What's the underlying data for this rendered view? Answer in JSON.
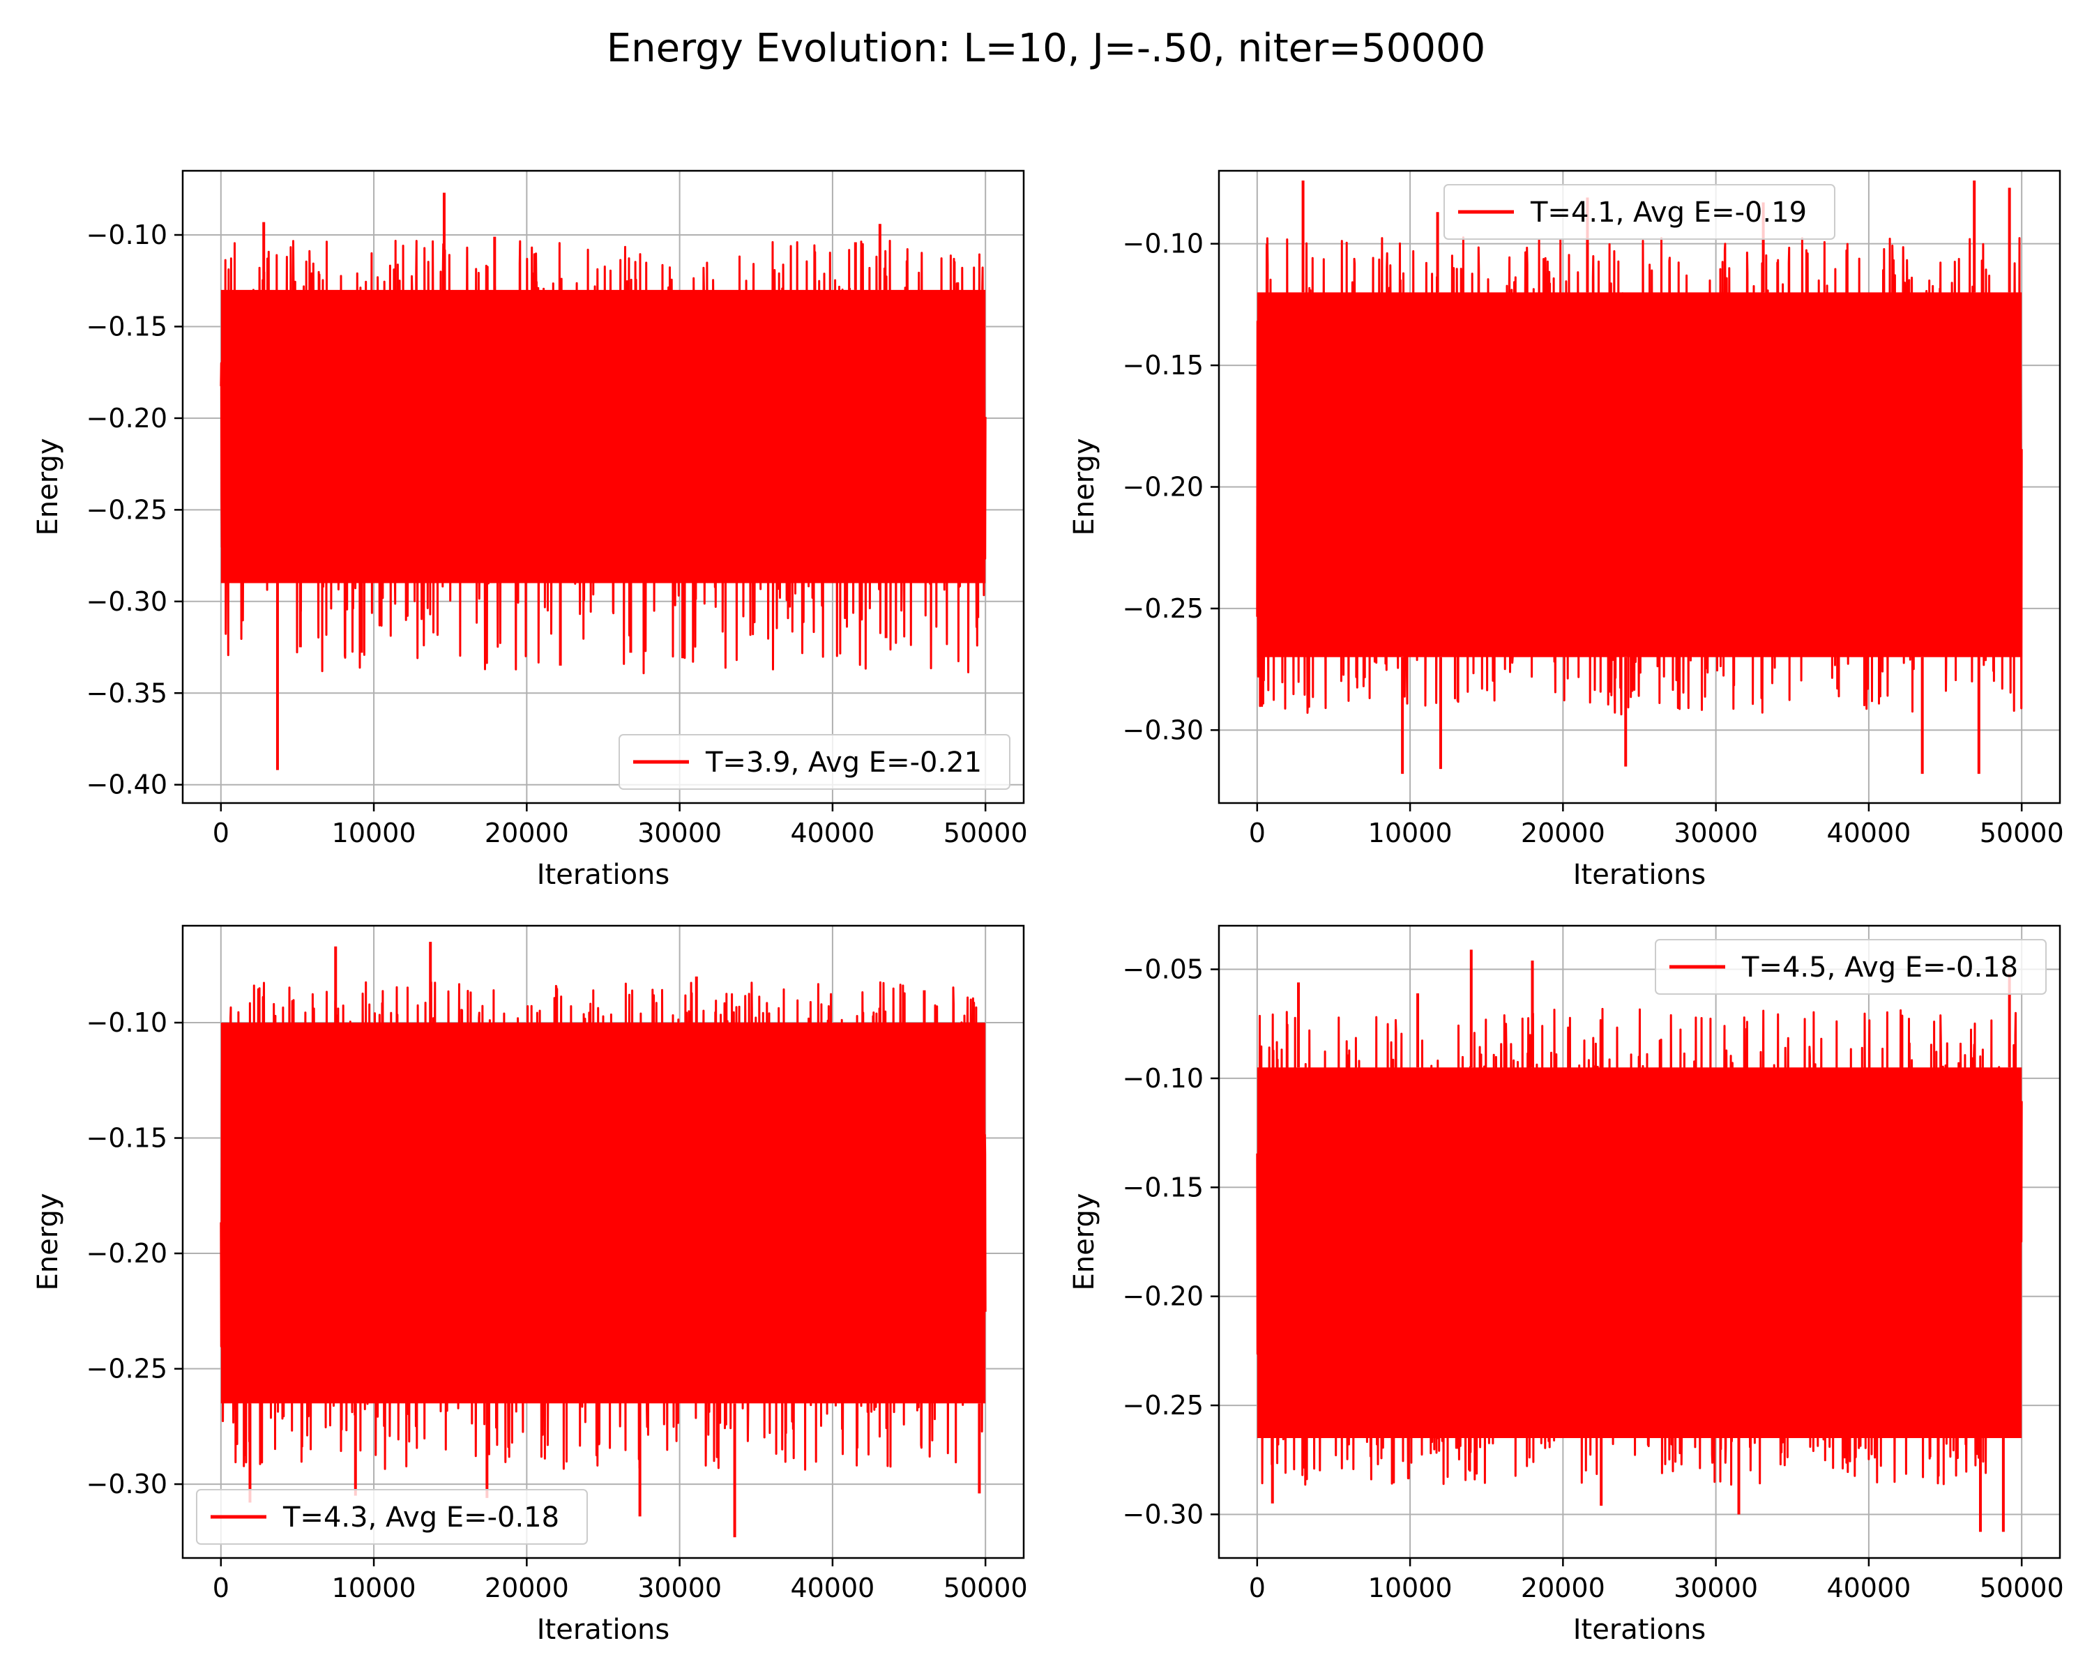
{
  "figure": {
    "suptitle": "Energy Evolution: L=10, J=-.50, niter=50000",
    "line_color": "#ff0000"
  },
  "chart_data": [
    {
      "type": "line",
      "xlabel": "Iterations",
      "ylabel": "Energy",
      "xlim": [
        -2500,
        52500
      ],
      "ylim": [
        -0.41,
        -0.065
      ],
      "xticks": [
        0,
        10000,
        20000,
        30000,
        40000,
        50000
      ],
      "yticks": [
        -0.4,
        -0.35,
        -0.3,
        -0.25,
        -0.2,
        -0.15,
        -0.1
      ],
      "ytick_labels": [
        "−0.40",
        "−0.35",
        "−0.30",
        "−0.25",
        "−0.20",
        "−0.15",
        "−0.10"
      ],
      "grid": true,
      "legend": "lower-right",
      "series": [
        {
          "name": "T=3.9, Avg E=-0.21",
          "color": "#ff0000",
          "n_points": 50000,
          "mean": -0.21,
          "band_low": -0.29,
          "band_high": -0.13,
          "max": -0.076,
          "min": -0.39
        }
      ],
      "spikes": [
        {
          "x": 3700,
          "y": -0.392
        },
        {
          "x": 14600,
          "y": -0.077
        },
        {
          "x": 9200,
          "y": -0.328
        },
        {
          "x": 22200,
          "y": -0.335
        },
        {
          "x": 26800,
          "y": -0.328
        },
        {
          "x": 30200,
          "y": -0.331
        },
        {
          "x": 5200,
          "y": -0.325
        },
        {
          "x": 43500,
          "y": -0.32
        },
        {
          "x": 43100,
          "y": -0.094
        },
        {
          "x": 2800,
          "y": -0.093
        },
        {
          "x": 17900,
          "y": -0.101
        },
        {
          "x": 41500,
          "y": -0.104
        },
        {
          "x": 49500,
          "y": -0.309
        }
      ]
    },
    {
      "type": "line",
      "xlabel": "Iterations",
      "ylabel": "Energy",
      "xlim": [
        -2500,
        52500
      ],
      "ylim": [
        -0.33,
        -0.07
      ],
      "xticks": [
        0,
        10000,
        20000,
        30000,
        40000,
        50000
      ],
      "yticks": [
        -0.3,
        -0.25,
        -0.2,
        -0.15,
        -0.1
      ],
      "ytick_labels": [
        "−0.30",
        "−0.25",
        "−0.20",
        "−0.15",
        "−0.10"
      ],
      "grid": true,
      "legend": "upper-center",
      "series": [
        {
          "name": "T=4.1, Avg E=-0.19",
          "color": "#ff0000",
          "n_points": 50000,
          "mean": -0.19,
          "band_low": -0.27,
          "band_high": -0.12,
          "max": -0.074,
          "min": -0.318
        }
      ],
      "spikes": [
        {
          "x": 3000,
          "y": -0.074
        },
        {
          "x": 46900,
          "y": -0.074
        },
        {
          "x": 49200,
          "y": -0.077
        },
        {
          "x": 9500,
          "y": -0.318
        },
        {
          "x": 12000,
          "y": -0.316
        },
        {
          "x": 24100,
          "y": -0.315
        },
        {
          "x": 43500,
          "y": -0.318
        },
        {
          "x": 47200,
          "y": -0.318
        },
        {
          "x": 21600,
          "y": -0.081
        },
        {
          "x": 33100,
          "y": -0.083
        },
        {
          "x": 11800,
          "y": -0.087
        }
      ]
    },
    {
      "type": "line",
      "xlabel": "Iterations",
      "ylabel": "Energy",
      "xlim": [
        -2500,
        52500
      ],
      "ylim": [
        -0.332,
        -0.058
      ],
      "xticks": [
        0,
        10000,
        20000,
        30000,
        40000,
        50000
      ],
      "yticks": [
        -0.3,
        -0.25,
        -0.2,
        -0.15,
        -0.1
      ],
      "ytick_labels": [
        "−0.30",
        "−0.25",
        "−0.20",
        "−0.15",
        "−0.10"
      ],
      "grid": true,
      "legend": "lower-left",
      "series": [
        {
          "name": "T=4.3, Avg E=-0.18",
          "color": "#ff0000",
          "n_points": 50000,
          "mean": -0.18,
          "band_low": -0.265,
          "band_high": -0.1,
          "max": -0.065,
          "min": -0.323
        }
      ],
      "spikes": [
        {
          "x": 7500,
          "y": -0.067
        },
        {
          "x": 13700,
          "y": -0.065
        },
        {
          "x": 33600,
          "y": -0.323
        },
        {
          "x": 27400,
          "y": -0.314
        },
        {
          "x": 8800,
          "y": -0.305
        },
        {
          "x": 1900,
          "y": -0.308
        },
        {
          "x": 17400,
          "y": -0.306
        },
        {
          "x": 49600,
          "y": -0.304
        },
        {
          "x": 31100,
          "y": -0.08
        },
        {
          "x": 46000,
          "y": -0.086
        }
      ]
    },
    {
      "type": "line",
      "xlabel": "Iterations",
      "ylabel": "Energy",
      "xlim": [
        -2500,
        52500
      ],
      "ylim": [
        -0.32,
        -0.03
      ],
      "xticks": [
        0,
        10000,
        20000,
        30000,
        40000,
        50000
      ],
      "yticks": [
        -0.3,
        -0.25,
        -0.2,
        -0.15,
        -0.1,
        -0.05
      ],
      "ytick_labels": [
        "−0.30",
        "−0.25",
        "−0.20",
        "−0.15",
        "−0.10",
        "−0.05"
      ],
      "grid": true,
      "legend": "upper-right",
      "series": [
        {
          "name": "T=4.5, Avg E=-0.18",
          "color": "#ff0000",
          "n_points": 50000,
          "mean": -0.18,
          "band_low": -0.265,
          "band_high": -0.095,
          "max": -0.041,
          "min": -0.308
        }
      ],
      "spikes": [
        {
          "x": 14000,
          "y": -0.041
        },
        {
          "x": 18000,
          "y": -0.046
        },
        {
          "x": 2700,
          "y": -0.056
        },
        {
          "x": 49200,
          "y": -0.052
        },
        {
          "x": 47300,
          "y": -0.308
        },
        {
          "x": 48800,
          "y": -0.308
        },
        {
          "x": 31500,
          "y": -0.3
        },
        {
          "x": 22500,
          "y": -0.296
        },
        {
          "x": 1000,
          "y": -0.295
        },
        {
          "x": 10500,
          "y": -0.061
        }
      ]
    }
  ]
}
